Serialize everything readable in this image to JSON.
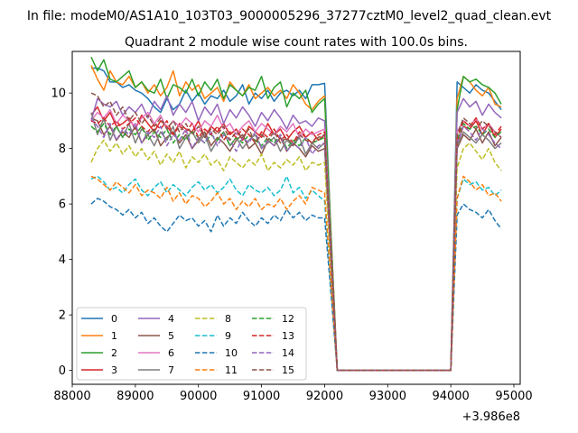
{
  "suptitle": "In file: modeM0/AS1A10_103T03_9000005296_37277cztM0_level2_quad_clean.evt",
  "chart_data": {
    "type": "line",
    "title": "Quadrant 2 module wise count rates with 100.0s bins.",
    "xlabel": "",
    "ylabel": "",
    "x_offset_label": "+3.986e8",
    "xlim": [
      88000,
      95100
    ],
    "ylim": [
      -0.5,
      11.5
    ],
    "x_ticks": [
      88000,
      89000,
      90000,
      91000,
      92000,
      93000,
      94000,
      95000
    ],
    "x_tick_labels": [
      "88000",
      "89000",
      "90000",
      "91000",
      "92000",
      "93000",
      "94000",
      "95000"
    ],
    "y_ticks": [
      0,
      2,
      4,
      6,
      8,
      10
    ],
    "y_tick_labels": [
      "0",
      "2",
      "4",
      "6",
      "8",
      "10"
    ],
    "grid": false,
    "legend_position": "lower-left",
    "legend_columns": 4,
    "x": [
      88300,
      88400,
      88500,
      88600,
      88700,
      88800,
      88900,
      89000,
      89100,
      89200,
      89300,
      89400,
      89500,
      89600,
      89700,
      89800,
      89900,
      90000,
      90100,
      90200,
      90300,
      90400,
      90500,
      90600,
      90700,
      90800,
      90900,
      91000,
      91100,
      91200,
      91300,
      91400,
      91500,
      91600,
      91700,
      91800,
      91900,
      92000,
      92100,
      92200,
      92300,
      92400,
      92500,
      92600,
      92700,
      92800,
      92900,
      93000,
      93100,
      93200,
      93300,
      93400,
      93500,
      93600,
      93700,
      93800,
      93900,
      94000,
      94100,
      94200,
      94300,
      94400,
      94500,
      94600,
      94700,
      94800
    ],
    "series": [
      {
        "name": "0",
        "color": "#1f77b4",
        "dash": "solid",
        "values": [
          10.9,
          10.9,
          10.8,
          10.4,
          10.4,
          10.2,
          10.3,
          10.1,
          10.0,
          9.8,
          9.5,
          9.3,
          9.8,
          9.4,
          9.6,
          10.1,
          9.7,
          10.0,
          9.6,
          9.9,
          9.8,
          10.1,
          9.7,
          9.9,
          10.3,
          9.6,
          10.0,
          9.8,
          10.1,
          9.7,
          10.0,
          10.1,
          9.9,
          10.1,
          9.8,
          10.3,
          10.3,
          10.35,
          5.0,
          0,
          0,
          0,
          0,
          0,
          0,
          0,
          0,
          0,
          0,
          0,
          0,
          0,
          0,
          0,
          0,
          0,
          0,
          0,
          10.4,
          10.2,
          10.0,
          10.3,
          10.1,
          10.0,
          9.7,
          9.4
        ]
      },
      {
        "name": "1",
        "color": "#ff7f0e",
        "dash": "solid",
        "values": [
          11.0,
          10.5,
          10.1,
          10.8,
          10.4,
          10.3,
          10.6,
          10.2,
          10.4,
          10.0,
          10.3,
          9.9,
          10.2,
          10.8,
          9.9,
          10.4,
          10.1,
          10.3,
          9.8,
          10.0,
          10.2,
          9.7,
          10.4,
          10.1,
          9.9,
          10.3,
          9.8,
          10.0,
          10.2,
          9.9,
          10.1,
          9.8,
          10.3,
          10.0,
          9.6,
          9.4,
          9.7,
          9.9,
          5.0,
          0,
          0,
          0,
          0,
          0,
          0,
          0,
          0,
          0,
          0,
          0,
          0,
          0,
          0,
          0,
          0,
          0,
          0,
          0,
          9.8,
          10.6,
          10.4,
          10.1,
          9.9,
          10.2,
          9.6,
          9.5
        ]
      },
      {
        "name": "2",
        "color": "#2ca02c",
        "dash": "solid",
        "values": [
          11.3,
          10.8,
          11.2,
          10.5,
          10.4,
          10.6,
          10.8,
          10.2,
          10.4,
          10.1,
          10.0,
          10.5,
          9.8,
          10.3,
          10.2,
          10.0,
          10.5,
          9.9,
          10.4,
          10.1,
          10.5,
          9.8,
          10.3,
          10.1,
          9.9,
          10.2,
          10.1,
          10.6,
          9.8,
          10.2,
          10.4,
          9.5,
          10.0,
          9.8,
          10.1,
          9.3,
          9.6,
          9.8,
          4.9,
          0,
          0,
          0,
          0,
          0,
          0,
          0,
          0,
          0,
          0,
          0,
          0,
          0,
          0,
          0,
          0,
          0,
          0,
          0,
          9.4,
          10.6,
          10.4,
          10.5,
          10.3,
          10.2,
          10.0,
          9.6
        ]
      },
      {
        "name": "3",
        "color": "#d62728",
        "dash": "solid",
        "values": [
          9.2,
          9.5,
          9.0,
          9.3,
          8.8,
          8.9,
          9.1,
          8.7,
          9.2,
          8.9,
          8.6,
          9.0,
          8.8,
          8.5,
          8.9,
          8.7,
          8.6,
          9.0,
          8.4,
          8.8,
          8.6,
          8.9,
          8.5,
          8.7,
          8.3,
          8.8,
          8.6,
          8.4,
          8.9,
          8.5,
          8.7,
          8.3,
          8.6,
          8.8,
          8.4,
          8.6,
          8.3,
          8.5,
          4.2,
          0,
          0,
          0,
          0,
          0,
          0,
          0,
          0,
          0,
          0,
          0,
          0,
          0,
          0,
          0,
          0,
          0,
          0,
          0,
          8.2,
          8.8,
          8.7,
          9.0,
          8.5,
          8.9,
          8.4,
          8.7
        ]
      },
      {
        "name": "4",
        "color": "#9467bd",
        "dash": "solid",
        "values": [
          9.0,
          9.8,
          9.6,
          9.5,
          9.7,
          9.2,
          9.5,
          9.3,
          9.6,
          9.1,
          9.7,
          9.4,
          9.9,
          9.2,
          9.6,
          9.3,
          9.7,
          9.0,
          9.5,
          9.2,
          9.6,
          8.9,
          9.4,
          9.1,
          9.5,
          9.2,
          8.8,
          9.3,
          9.0,
          9.4,
          9.1,
          8.7,
          9.2,
          8.9,
          9.0,
          8.8,
          9.1,
          9.0,
          4.5,
          0,
          0,
          0,
          0,
          0,
          0,
          0,
          0,
          0,
          0,
          0,
          0,
          0,
          0,
          0,
          0,
          0,
          0,
          0,
          9.3,
          9.8,
          9.5,
          9.7,
          9.2,
          9.6,
          9.3,
          9.1
        ]
      },
      {
        "name": "5",
        "color": "#8c564b",
        "dash": "solid",
        "values": [
          9.1,
          9.0,
          8.5,
          8.8,
          8.3,
          8.6,
          8.4,
          8.8,
          8.2,
          8.5,
          8.7,
          8.1,
          8.4,
          8.6,
          8.2,
          8.5,
          8.0,
          8.3,
          8.6,
          8.1,
          8.4,
          8.2,
          7.9,
          8.3,
          8.5,
          8.0,
          8.2,
          7.8,
          8.3,
          8.1,
          8.4,
          7.9,
          8.2,
          8.0,
          7.7,
          8.1,
          7.9,
          8.0,
          4.0,
          0,
          0,
          0,
          0,
          0,
          0,
          0,
          0,
          0,
          0,
          0,
          0,
          0,
          0,
          0,
          0,
          0,
          0,
          0,
          8.0,
          8.5,
          8.3,
          8.7,
          8.2,
          8.6,
          8.1,
          8.4
        ]
      },
      {
        "name": "6",
        "color": "#e377c2",
        "dash": "solid",
        "values": [
          9.0,
          9.3,
          9.1,
          9.4,
          8.9,
          9.2,
          9.0,
          8.8,
          9.1,
          9.3,
          8.9,
          9.2,
          8.7,
          9.0,
          8.8,
          9.1,
          8.9,
          8.6,
          9.0,
          8.8,
          9.2,
          8.7,
          8.9,
          8.5,
          8.8,
          9.0,
          8.6,
          8.9,
          8.7,
          8.5,
          8.8,
          8.6,
          8.9,
          8.4,
          8.7,
          8.5,
          8.6,
          8.7,
          4.3,
          0,
          0,
          0,
          0,
          0,
          0,
          0,
          0,
          0,
          0,
          0,
          0,
          0,
          0,
          0,
          0,
          0,
          0,
          0,
          8.6,
          9.0,
          8.8,
          9.1,
          8.7,
          8.9,
          8.6,
          8.4
        ]
      },
      {
        "name": "7",
        "color": "#7f7f7f",
        "dash": "solid",
        "values": [
          9.3,
          8.5,
          9.1,
          8.3,
          8.8,
          8.4,
          8.9,
          8.2,
          8.7,
          8.5,
          8.1,
          8.6,
          8.3,
          8.8,
          8.0,
          8.4,
          8.6,
          8.2,
          8.5,
          7.9,
          8.3,
          8.6,
          8.1,
          8.4,
          8.0,
          8.3,
          8.5,
          8.0,
          8.2,
          8.4,
          7.9,
          8.3,
          8.1,
          8.4,
          7.8,
          8.2,
          8.0,
          8.2,
          4.1,
          0,
          0,
          0,
          0,
          0,
          0,
          0,
          0,
          0,
          0,
          0,
          0,
          0,
          0,
          0,
          0,
          0,
          0,
          0,
          8.1,
          8.6,
          8.4,
          8.2,
          8.5,
          8.3,
          8.0,
          8.2
        ]
      },
      {
        "name": "8",
        "color": "#bcbd22",
        "dash": "dashed",
        "values": [
          7.5,
          8.0,
          8.3,
          7.9,
          8.2,
          7.8,
          8.1,
          7.7,
          8.0,
          7.6,
          7.9,
          7.4,
          7.8,
          7.5,
          7.9,
          7.3,
          7.7,
          7.5,
          7.8,
          7.4,
          7.6,
          7.2,
          7.7,
          7.5,
          7.3,
          7.6,
          7.4,
          7.8,
          7.2,
          7.5,
          7.3,
          7.6,
          7.4,
          7.7,
          7.2,
          7.5,
          7.4,
          7.5,
          3.7,
          0,
          0,
          0,
          0,
          0,
          0,
          0,
          0,
          0,
          0,
          0,
          0,
          0,
          0,
          0,
          0,
          0,
          0,
          0,
          7.3,
          8.0,
          8.2,
          7.9,
          7.6,
          8.0,
          7.5,
          7.2
        ]
      },
      {
        "name": "9",
        "color": "#17becf",
        "dash": "dashed",
        "values": [
          6.9,
          7.0,
          6.8,
          6.5,
          6.6,
          6.4,
          6.7,
          6.9,
          6.5,
          6.3,
          6.6,
          6.8,
          6.4,
          6.7,
          6.5,
          6.3,
          6.6,
          6.8,
          6.5,
          6.7,
          6.4,
          6.6,
          6.9,
          6.5,
          6.3,
          6.7,
          6.5,
          6.4,
          6.6,
          6.3,
          6.5,
          7.0,
          6.4,
          6.6,
          6.2,
          6.5,
          6.3,
          6.1,
          3.0,
          0,
          0,
          0,
          0,
          0,
          0,
          0,
          0,
          0,
          0,
          0,
          0,
          0,
          0,
          0,
          0,
          0,
          0,
          0,
          6.2,
          6.9,
          6.7,
          6.8,
          6.5,
          6.6,
          6.3,
          6.5
        ]
      },
      {
        "name": "10",
        "color": "#1f77b4",
        "dash": "dashed",
        "values": [
          6.0,
          6.2,
          6.1,
          5.9,
          5.8,
          5.6,
          5.8,
          5.5,
          5.7,
          5.3,
          5.5,
          5.2,
          5.0,
          5.3,
          5.6,
          5.4,
          5.5,
          5.2,
          5.4,
          5.0,
          5.6,
          5.2,
          5.5,
          5.3,
          5.7,
          5.4,
          5.2,
          5.5,
          5.3,
          5.6,
          5.4,
          5.8,
          5.5,
          5.7,
          5.4,
          5.6,
          5.5,
          5.5,
          2.8,
          0,
          0,
          0,
          0,
          0,
          0,
          0,
          0,
          0,
          0,
          0,
          0,
          0,
          0,
          0,
          0,
          0,
          0,
          0,
          5.6,
          6.0,
          5.8,
          5.7,
          5.5,
          5.8,
          5.4,
          5.1
        ]
      },
      {
        "name": "11",
        "color": "#ff7f0e",
        "dash": "dashed",
        "values": [
          7.0,
          6.9,
          6.7,
          6.5,
          6.8,
          6.6,
          6.4,
          6.7,
          6.3,
          6.5,
          6.4,
          6.2,
          6.6,
          6.1,
          6.4,
          6.0,
          6.3,
          6.2,
          5.9,
          6.1,
          6.4,
          6.0,
          6.2,
          5.8,
          6.1,
          5.9,
          6.2,
          5.8,
          6.0,
          5.9,
          6.2,
          5.8,
          6.1,
          6.3,
          6.0,
          6.6,
          6.5,
          6.4,
          3.2,
          0,
          0,
          0,
          0,
          0,
          0,
          0,
          0,
          0,
          0,
          0,
          0,
          0,
          0,
          0,
          0,
          0,
          0,
          0,
          6.2,
          7.0,
          6.8,
          6.5,
          6.7,
          6.3,
          6.4,
          6.1
        ]
      },
      {
        "name": "12",
        "color": "#2ca02c",
        "dash": "dashed",
        "values": [
          8.8,
          8.6,
          8.9,
          8.5,
          8.8,
          8.4,
          8.7,
          8.5,
          8.8,
          8.3,
          8.6,
          8.4,
          8.7,
          8.2,
          8.5,
          8.3,
          8.6,
          8.4,
          8.2,
          8.5,
          8.3,
          8.6,
          8.1,
          8.4,
          8.2,
          8.5,
          8.3,
          8.1,
          8.4,
          8.2,
          8.5,
          8.0,
          8.3,
          8.1,
          8.4,
          8.2,
          8.3,
          8.4,
          4.2,
          0,
          0,
          0,
          0,
          0,
          0,
          0,
          0,
          0,
          0,
          0,
          0,
          0,
          0,
          0,
          0,
          0,
          0,
          0,
          8.3,
          8.9,
          8.7,
          8.8,
          8.5,
          8.7,
          8.4,
          8.6
        ]
      },
      {
        "name": "13",
        "color": "#d62728",
        "dash": "dashed",
        "values": [
          9.0,
          8.9,
          9.1,
          8.8,
          9.0,
          8.7,
          8.9,
          9.1,
          8.8,
          8.6,
          8.9,
          8.7,
          9.0,
          8.5,
          8.8,
          8.6,
          8.9,
          8.4,
          8.7,
          8.5,
          8.8,
          8.3,
          8.6,
          8.4,
          8.7,
          8.5,
          8.2,
          8.6,
          8.4,
          8.7,
          8.3,
          8.5,
          8.2,
          8.6,
          8.4,
          8.2,
          8.5,
          8.6,
          4.3,
          0,
          0,
          0,
          0,
          0,
          0,
          0,
          0,
          0,
          0,
          0,
          0,
          0,
          0,
          0,
          0,
          0,
          0,
          0,
          8.4,
          9.0,
          8.8,
          9.1,
          8.7,
          8.9,
          8.5,
          8.8
        ]
      },
      {
        "name": "14",
        "color": "#9467bd",
        "dash": "dashed",
        "values": [
          9.1,
          8.8,
          8.4,
          8.9,
          8.3,
          8.7,
          8.5,
          8.9,
          8.2,
          8.6,
          8.4,
          8.8,
          8.1,
          8.5,
          8.3,
          8.7,
          8.0,
          8.4,
          8.2,
          8.6,
          8.1,
          8.5,
          8.3,
          7.9,
          8.4,
          8.2,
          8.6,
          8.0,
          8.3,
          8.1,
          8.5,
          7.9,
          8.2,
          8.0,
          8.4,
          7.8,
          8.1,
          8.2,
          4.1,
          0,
          0,
          0,
          0,
          0,
          0,
          0,
          0,
          0,
          0,
          0,
          0,
          0,
          0,
          0,
          0,
          0,
          0,
          0,
          8.2,
          8.8,
          8.6,
          8.3,
          8.7,
          8.5,
          8.2,
          8.0
        ]
      },
      {
        "name": "15",
        "color": "#8c564b",
        "dash": "dashed",
        "values": [
          10.0,
          9.9,
          9.5,
          9.7,
          9.2,
          9.5,
          9.0,
          9.3,
          8.9,
          9.2,
          8.8,
          9.1,
          8.7,
          9.0,
          8.6,
          8.9,
          8.5,
          8.8,
          8.4,
          8.7,
          8.5,
          8.8,
          8.3,
          8.6,
          8.4,
          8.7,
          8.2,
          8.5,
          8.3,
          8.6,
          8.2,
          8.4,
          8.1,
          8.5,
          8.3,
          8.2,
          8.4,
          8.5,
          4.2,
          0,
          0,
          0,
          0,
          0,
          0,
          0,
          0,
          0,
          0,
          0,
          0,
          0,
          0,
          0,
          0,
          0,
          0,
          0,
          8.5,
          9.1,
          8.9,
          8.7,
          9.0,
          8.8,
          8.6,
          8.4
        ]
      }
    ]
  }
}
